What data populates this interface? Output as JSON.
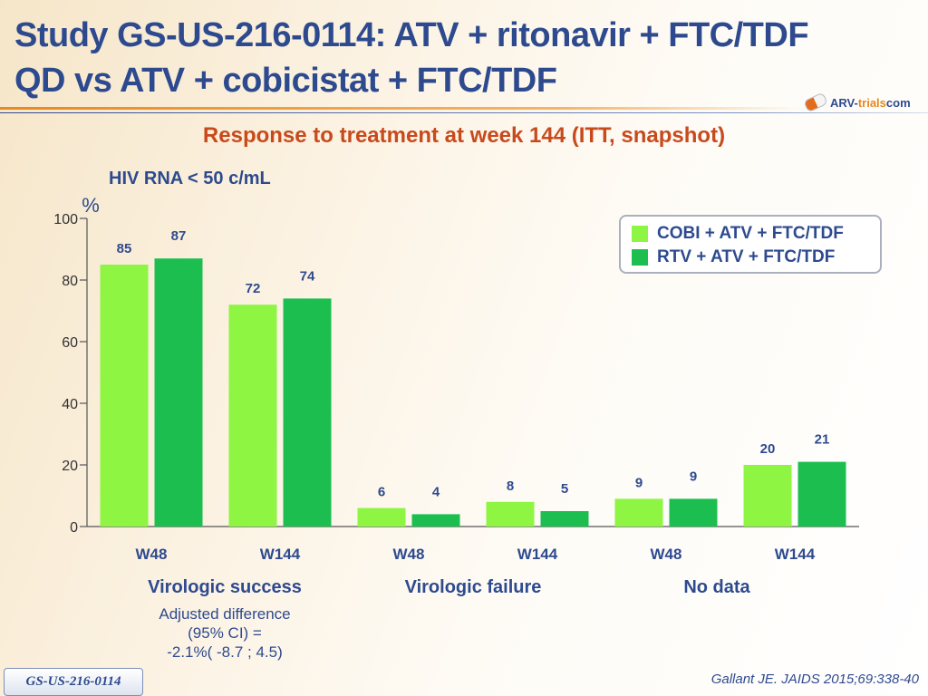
{
  "header": {
    "title_line1": "Study GS-US-216-0114: ATV + ritonavir + FTC/TDF",
    "title_line2": "QD vs ATV + cobicistat + FTC/TDF",
    "logo_main": "ARV-",
    "logo_accent": "trials",
    "logo_suffix": "com",
    "logo_icon": "capsule-icon"
  },
  "subtitle": "Response to treatment at week 144 (ITT, snapshot)",
  "measure_label": "HIV RNA < 50 c/mL",
  "colors": {
    "series1": "#8ef542",
    "series2": "#1cbf4f",
    "axis": "#555555",
    "title": "#2e4a8f",
    "subtitle": "#c84a1c"
  },
  "chart_data": {
    "type": "bar",
    "ylabel": "%",
    "ylim": [
      0,
      100
    ],
    "yticks": [
      0,
      20,
      40,
      60,
      80,
      100
    ],
    "categories": [
      "W48",
      "W144",
      "W48",
      "W144",
      "W48",
      "W144"
    ],
    "groups": [
      {
        "label": "Virologic success",
        "categories": [
          0,
          1
        ]
      },
      {
        "label": "Virologic failure",
        "categories": [
          2,
          3
        ]
      },
      {
        "label": "No data",
        "categories": [
          4,
          5
        ]
      }
    ],
    "series": [
      {
        "name": "COBI + ATV + FTC/TDF",
        "values": [
          85,
          72,
          6,
          8,
          9,
          20
        ]
      },
      {
        "name": "RTV + ATV + FTC/TDF",
        "values": [
          87,
          74,
          4,
          5,
          9,
          21
        ]
      }
    ],
    "legend": "top-right",
    "grid": false
  },
  "note": {
    "line1": "Adjusted difference",
    "line2": "(95% CI) =",
    "line3": "-2.1%( -8.7 ; 4.5)"
  },
  "footer": {
    "study_badge": "GS-US-216-0114",
    "citation": "Gallant JE. JAIDS 2015;69:338-40"
  }
}
